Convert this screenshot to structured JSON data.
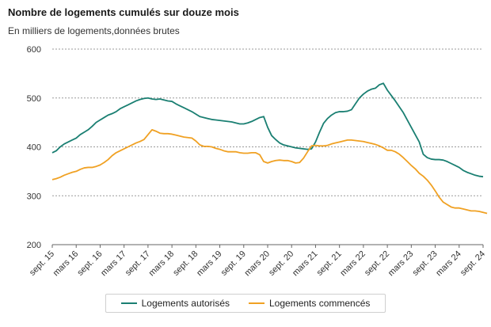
{
  "header": {
    "title": "Nombre de logements cumulés sur douze mois",
    "subtitle": "En milliers de logements,données brutes"
  },
  "colors": {
    "autorises": "#1a7f72",
    "commences": "#f0a123",
    "grid": "#9a9a9a",
    "axis": "#666666"
  },
  "legend": {
    "items": [
      {
        "label": "Logements autorisés",
        "color": "#1a7f72"
      },
      {
        "label": "Logements commencés",
        "color": "#f0a123"
      }
    ]
  },
  "chart_data": {
    "type": "line",
    "title": "Nombre de logements cumulés sur douze mois",
    "ylabel": "En milliers de logements,données brutes",
    "ylim": [
      200,
      600
    ],
    "yticks": [
      200,
      300,
      400,
      500,
      600
    ],
    "grid": true,
    "legend_position": "bottom",
    "x_start": "2015-09",
    "x_ticks": [
      {
        "index": 0,
        "label": "sept. 15"
      },
      {
        "index": 6,
        "label": "mars 16"
      },
      {
        "index": 12,
        "label": "sept. 16"
      },
      {
        "index": 18,
        "label": "mars 17"
      },
      {
        "index": 24,
        "label": "sept. 17"
      },
      {
        "index": 30,
        "label": "mars 18"
      },
      {
        "index": 36,
        "label": "sept. 18"
      },
      {
        "index": 42,
        "label": "mars 19"
      },
      {
        "index": 48,
        "label": "sept. 19"
      },
      {
        "index": 54,
        "label": "mars 20"
      },
      {
        "index": 60,
        "label": "sept. 20"
      },
      {
        "index": 66,
        "label": "mars 21"
      },
      {
        "index": 72,
        "label": "sept. 21"
      },
      {
        "index": 78,
        "label": "mars 22"
      },
      {
        "index": 84,
        "label": "sept. 22"
      },
      {
        "index": 90,
        "label": "mars 23"
      },
      {
        "index": 96,
        "label": "sept. 23"
      },
      {
        "index": 102,
        "label": "mars 24"
      },
      {
        "index": 108,
        "label": "sept. 24"
      }
    ],
    "series": [
      {
        "name": "Logements autorisés",
        "values": [
          388,
          392,
          400,
          406,
          410,
          414,
          418,
          425,
          430,
          435,
          442,
          450,
          455,
          460,
          465,
          468,
          472,
          478,
          482,
          486,
          490,
          494,
          497,
          499,
          500,
          498,
          497,
          498,
          496,
          494,
          493,
          488,
          484,
          480,
          476,
          472,
          467,
          462,
          460,
          458,
          456,
          455,
          454,
          453,
          452,
          451,
          449,
          447,
          447,
          449,
          452,
          456,
          460,
          462,
          440,
          423,
          415,
          408,
          404,
          402,
          400,
          398,
          397,
          396,
          395,
          396,
          410,
          430,
          448,
          458,
          465,
          470,
          472,
          472,
          473,
          476,
          488,
          500,
          508,
          514,
          518,
          520,
          527,
          530,
          516,
          505,
          494,
          482,
          470,
          455,
          440,
          425,
          410,
          385,
          378,
          375,
          374,
          374,
          373,
          370,
          366,
          362,
          358,
          352,
          348,
          345,
          342,
          340,
          339
        ],
        "color": "#1a7f72"
      },
      {
        "name": "Logements commencés",
        "values": [
          333,
          335,
          338,
          342,
          345,
          348,
          350,
          354,
          357,
          358,
          358,
          360,
          363,
          368,
          374,
          382,
          388,
          392,
          396,
          400,
          404,
          408,
          411,
          415,
          425,
          435,
          432,
          428,
          427,
          427,
          426,
          424,
          422,
          420,
          419,
          418,
          412,
          404,
          401,
          401,
          400,
          397,
          395,
          392,
          390,
          390,
          390,
          388,
          387,
          387,
          388,
          388,
          384,
          370,
          367,
          370,
          372,
          373,
          372,
          372,
          370,
          367,
          368,
          377,
          390,
          402,
          403,
          402,
          402,
          403,
          406,
          408,
          410,
          412,
          414,
          414,
          413,
          412,
          411,
          409,
          407,
          405,
          402,
          398,
          393,
          393,
          390,
          385,
          378,
          370,
          362,
          355,
          346,
          340,
          332,
          322,
          310,
          297,
          287,
          282,
          277,
          275,
          275,
          273,
          271,
          269,
          269,
          268,
          266,
          264
        ],
        "color": "#f0a123"
      }
    ]
  }
}
